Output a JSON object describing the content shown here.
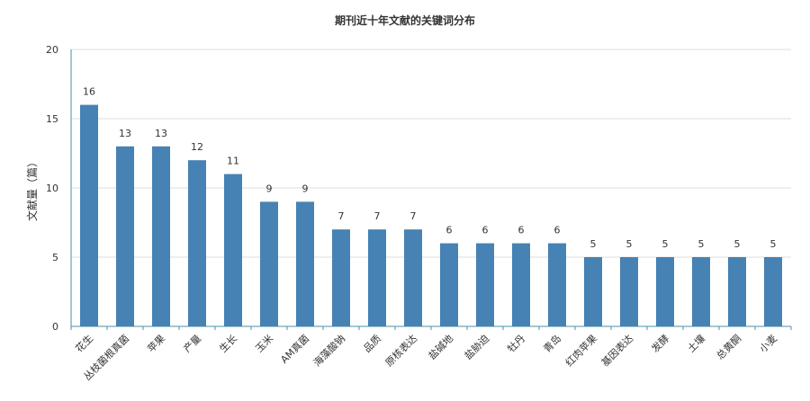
{
  "chart_data": {
    "type": "bar",
    "title": "期刊近十年文献的关键词分布",
    "ylabel": "文献量（篇）",
    "xlabel": "",
    "ylim": [
      0,
      20
    ],
    "yticks": [
      0,
      5,
      10,
      15,
      20
    ],
    "grid": true,
    "bar_color": "#4682B4",
    "categories": [
      "花生",
      "丛枝菌根真菌",
      "苹果",
      "产量",
      "生长",
      "玉米",
      "AM真菌",
      "海藻酸钠",
      "品质",
      "原核表达",
      "盐碱地",
      "盐胁迫",
      "牡丹",
      "青岛",
      "红肉苹果",
      "基因表达",
      "发酵",
      "土壤",
      "总黄酮",
      "小麦"
    ],
    "values": [
      16,
      13,
      13,
      12,
      11,
      9,
      9,
      7,
      7,
      7,
      6,
      6,
      6,
      6,
      5,
      5,
      5,
      5,
      5,
      5
    ]
  }
}
